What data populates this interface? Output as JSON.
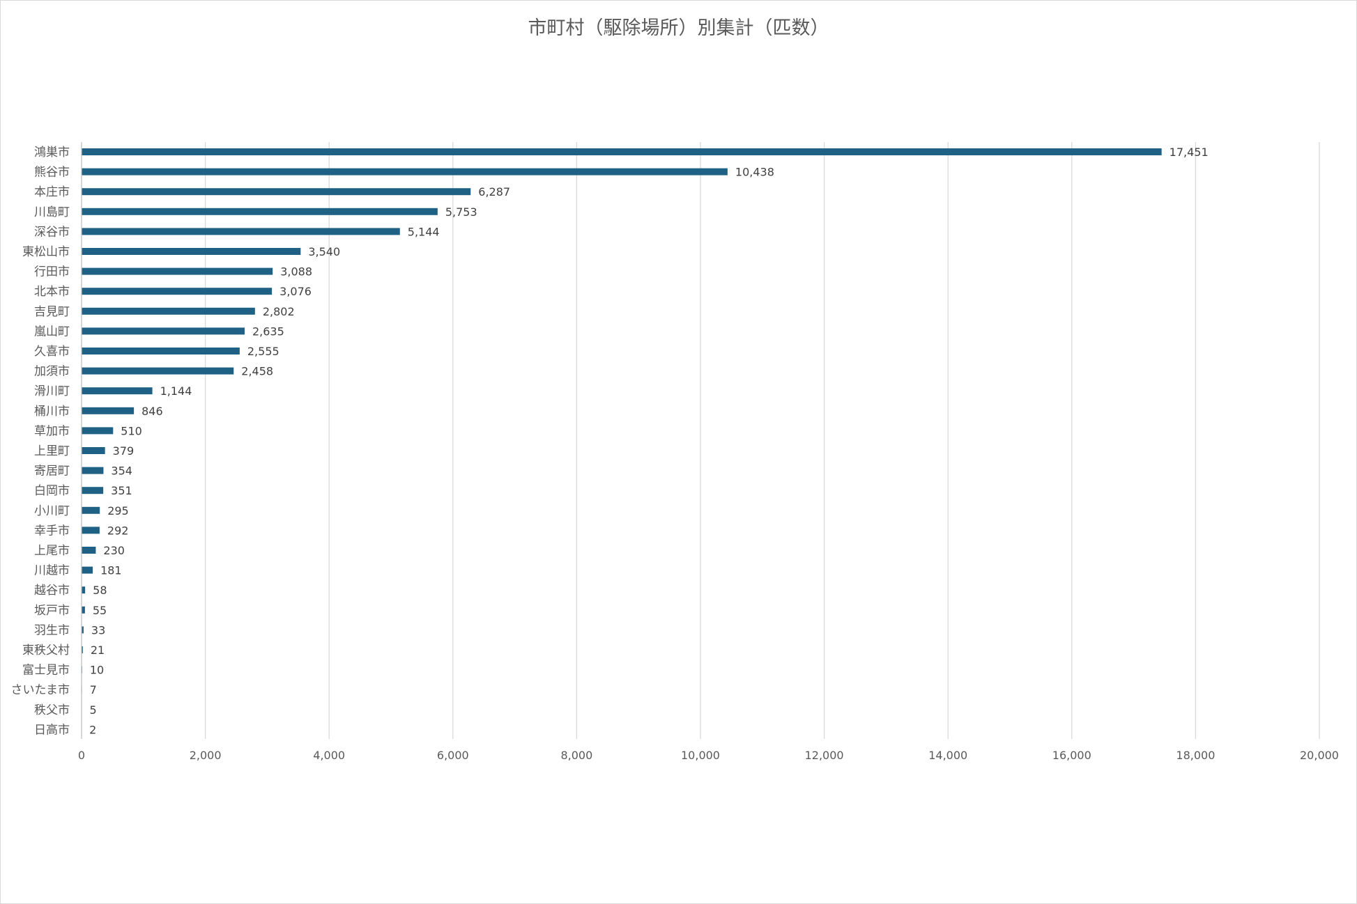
{
  "chart_data": {
    "type": "bar",
    "orientation": "horizontal",
    "title": "市町村（駆除場所）別集計（匹数）",
    "xlabel": "",
    "ylabel": "",
    "xlim": [
      0,
      20000
    ],
    "x_ticks": [
      "0",
      "2,000",
      "4,000",
      "6,000",
      "8,000",
      "10,000",
      "12,000",
      "14,000",
      "16,000",
      "18,000",
      "20,000"
    ],
    "grid": true,
    "legend": "none",
    "bar_color": "#1f6185",
    "categories": [
      "鴻巣市",
      "熊谷市",
      "本庄市",
      "川島町",
      "深谷市",
      "東松山市",
      "行田市",
      "北本市",
      "吉見町",
      "嵐山町",
      "久喜市",
      "加須市",
      "滑川町",
      "桶川市",
      "草加市",
      "上里町",
      "寄居町",
      "白岡市",
      "小川町",
      "幸手市",
      "上尾市",
      "川越市",
      "越谷市",
      "坂戸市",
      "羽生市",
      "東秩父村",
      "富士見市",
      "さいたま市",
      "秩父市",
      "日高市"
    ],
    "values": [
      17451,
      10438,
      6287,
      5753,
      5144,
      3540,
      3088,
      3076,
      2802,
      2635,
      2555,
      2458,
      1144,
      846,
      510,
      379,
      354,
      351,
      295,
      292,
      230,
      181,
      58,
      55,
      33,
      21,
      10,
      7,
      5,
      2
    ],
    "data_labels": [
      "17,451",
      "10,438",
      "6,287",
      "5,753",
      "5,144",
      "3,540",
      "3,088",
      "3,076",
      "2,802",
      "2,635",
      "2,555",
      "2,458",
      "1,144",
      "846",
      "510",
      "379",
      "354",
      "351",
      "295",
      "292",
      "230",
      "181",
      "58",
      "55",
      "33",
      "21",
      "10",
      "7",
      "5",
      "2"
    ]
  }
}
